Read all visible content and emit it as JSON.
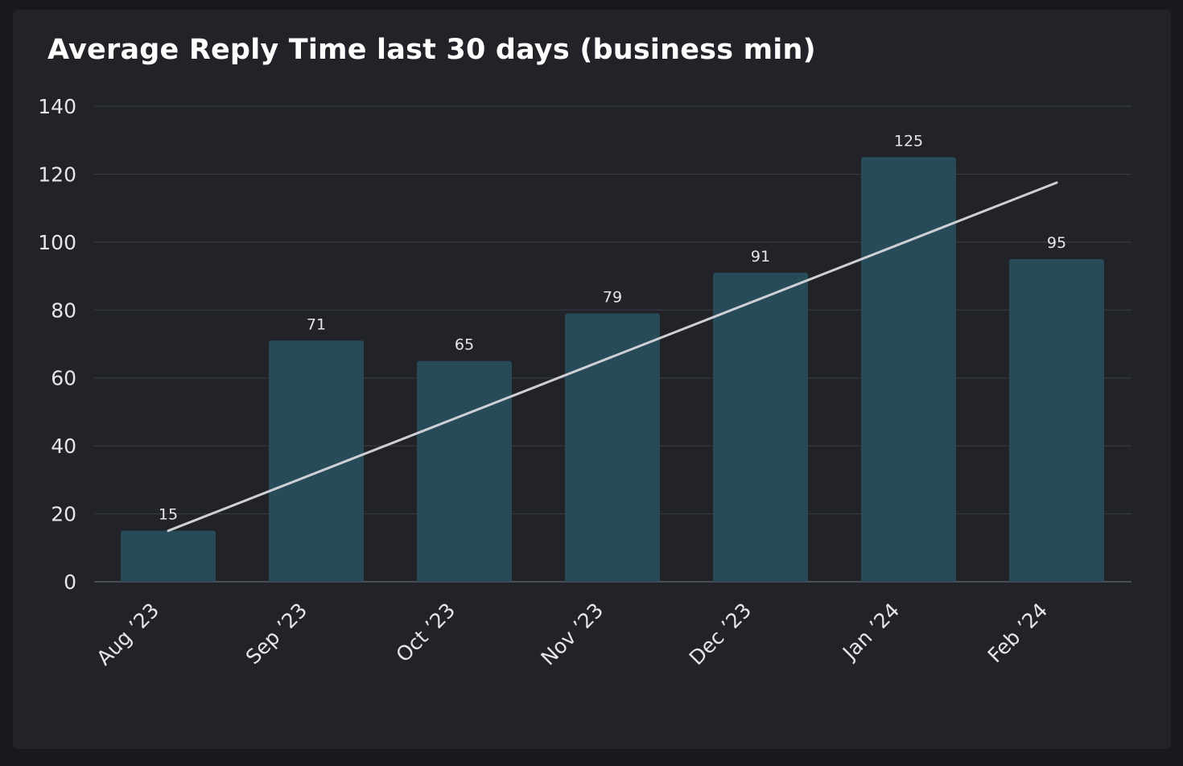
{
  "chart_data": {
    "type": "bar",
    "title": "Average Reply Time last 30 days (business min)",
    "categories": [
      "Aug '23",
      "Sep '23",
      "Oct '23",
      "Nov '23",
      "Dec '23",
      "Jan '24",
      "Feb '24"
    ],
    "values": [
      15,
      71,
      65,
      79,
      91,
      125,
      95
    ],
    "data_labels": [
      "15",
      "71",
      "65",
      "79",
      "91",
      "125",
      "95"
    ],
    "trendline": {
      "start": 15,
      "end": 117.5
    },
    "ylim": [
      0,
      140
    ],
    "yticks": [
      "0",
      "20",
      "40",
      "60",
      "80",
      "100",
      "120",
      "140"
    ],
    "grid": true,
    "colors": {
      "bar": "#284b5a",
      "trendline": "#cfd0d3",
      "grid": "#363940",
      "background": "#212328"
    }
  }
}
